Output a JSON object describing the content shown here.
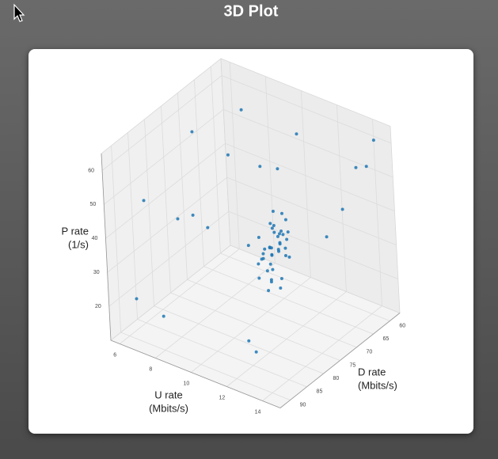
{
  "chart_data": {
    "type": "scatter3d",
    "title": "3D Plot",
    "xlabel": [
      "U rate",
      "(Mbits/s)"
    ],
    "ylabel": [
      "D rate",
      "(Mbits/s)"
    ],
    "zlabel": [
      "P rate",
      "(1/s)"
    ],
    "color": "#1f77b4",
    "x": [
      11.8,
      12.1,
      11.5,
      12.3,
      11.9,
      12.0,
      11.7,
      12.4,
      11.6,
      12.2,
      11.8,
      12.0,
      11.4,
      12.5,
      11.9,
      12.1,
      11.7,
      12.3,
      11.6,
      12.0,
      11.9,
      12.2,
      11.5,
      12.4,
      11.8,
      12.0,
      11.7,
      12.1,
      11.9,
      12.3,
      11.6,
      12.0,
      11.8,
      12.2,
      11.9,
      12.1,
      11.7,
      12.0,
      11.8,
      12.2,
      6.2,
      7.5,
      8.1,
      7.0,
      9.2,
      8.8,
      6.8,
      10.2,
      9.5,
      13.5,
      14.2,
      14.5,
      13.8,
      6.5,
      8.0,
      12.8,
      13.0,
      7.8,
      9.8,
      14.0
    ],
    "y": [
      77,
      76,
      78,
      75,
      79,
      77,
      74,
      78,
      80,
      76,
      77,
      73,
      79,
      76,
      78,
      75,
      77,
      80,
      76,
      74,
      78,
      77,
      79,
      75,
      76,
      78,
      77,
      81,
      74,
      77,
      78,
      76,
      75,
      79,
      77,
      76,
      78,
      77,
      80,
      75,
      70,
      62,
      85,
      75,
      66,
      80,
      88,
      60,
      72,
      60,
      58,
      62,
      66,
      90,
      90,
      88,
      91,
      68,
      64,
      72
    ],
    "z": [
      38,
      42,
      35,
      40,
      33,
      45,
      37,
      39,
      31,
      43,
      36,
      40,
      34,
      47,
      29,
      41,
      38,
      32,
      44,
      36,
      39,
      27,
      42,
      35,
      48,
      37,
      33,
      40,
      46,
      30,
      38,
      41,
      36,
      34,
      44,
      39,
      26,
      43,
      37,
      35,
      55,
      58,
      45,
      36,
      48,
      40,
      50,
      55,
      30,
      52,
      60,
      56,
      45,
      22,
      20,
      18,
      24,
      50,
      47,
      42
    ],
    "xlim": [
      5.5,
      15
    ],
    "ylim": [
      57,
      93
    ],
    "zlim": [
      10,
      65
    ],
    "xticks": [
      6,
      8,
      10,
      12,
      14
    ],
    "yticks": [
      60,
      65,
      70,
      75,
      80,
      85,
      90
    ],
    "zticks": [
      20,
      30,
      40,
      50,
      60
    ],
    "grid": true
  }
}
